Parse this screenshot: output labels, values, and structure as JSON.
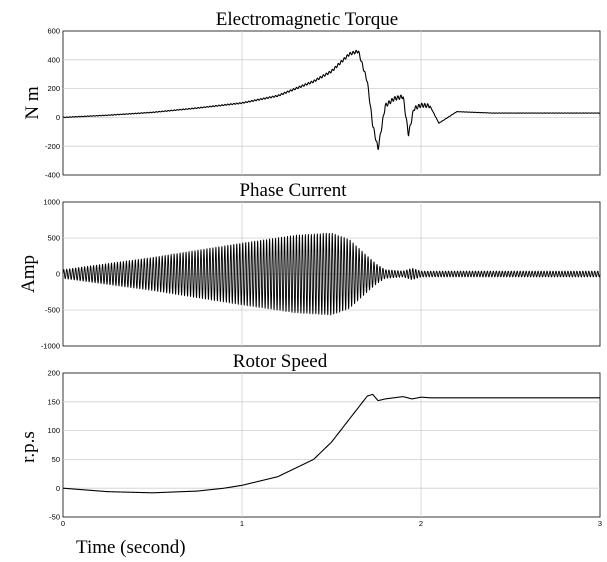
{
  "chart_data": [
    {
      "type": "line",
      "title": "Electromagnetic Torque",
      "ylabel": "N m",
      "xlabel": "",
      "xlim": [
        0,
        3
      ],
      "ylim": [
        -400,
        600
      ],
      "xticks": [
        0,
        1,
        2,
        3
      ],
      "yticks": [
        -400,
        -200,
        0,
        200,
        400,
        600
      ],
      "grid": true,
      "series": [
        {
          "x": [
            0,
            0.25,
            0.5,
            0.75,
            1.0,
            1.2,
            1.4,
            1.5,
            1.6,
            1.65,
            1.7,
            1.73,
            1.76,
            1.8,
            1.85,
            1.9,
            1.93,
            1.96,
            2.0,
            2.05,
            2.1,
            2.2,
            2.4,
            3.0
          ],
          "y": [
            0,
            15,
            35,
            65,
            100,
            150,
            250,
            320,
            440,
            460,
            250,
            -50,
            -220,
            80,
            130,
            145,
            -120,
            60,
            85,
            80,
            -40,
            40,
            30,
            30
          ]
        }
      ]
    },
    {
      "type": "line",
      "title": "Phase Current",
      "ylabel": "Amp",
      "xlabel": "",
      "xlim": [
        0,
        3
      ],
      "ylim": [
        -1000,
        1000
      ],
      "xticks": [
        0,
        1,
        2,
        3
      ],
      "yticks": [
        -1000,
        -500,
        0,
        500,
        1000
      ],
      "grid": true,
      "series": [
        {
          "envelope_t": [
            0,
            0.5,
            1.0,
            1.3,
            1.5,
            1.6,
            1.7,
            1.75,
            1.8,
            1.9,
            1.95,
            2.0,
            2.1,
            3.0
          ],
          "envelope_amp": [
            60,
            230,
            430,
            540,
            570,
            480,
            250,
            140,
            60,
            40,
            80,
            40,
            40,
            40
          ]
        }
      ]
    },
    {
      "type": "line",
      "title": "Rotor Speed",
      "ylabel": "r.p.s",
      "xlabel": "Time (second)",
      "xlim": [
        0,
        3
      ],
      "ylim": [
        -50,
        200
      ],
      "xticks": [
        0,
        1,
        2,
        3
      ],
      "yticks": [
        -50,
        0,
        50,
        100,
        150,
        200
      ],
      "grid": true,
      "series": [
        {
          "x": [
            0,
            0.25,
            0.5,
            0.75,
            0.9,
            1.0,
            1.2,
            1.4,
            1.5,
            1.6,
            1.7,
            1.73,
            1.76,
            1.8,
            1.9,
            1.95,
            2.0,
            2.05,
            2.2,
            3.0
          ],
          "y": [
            0,
            -6,
            -8,
            -5,
            0,
            5,
            20,
            50,
            80,
            120,
            160,
            163,
            152,
            155,
            159,
            155,
            158,
            157,
            157,
            157
          ]
        }
      ]
    }
  ]
}
